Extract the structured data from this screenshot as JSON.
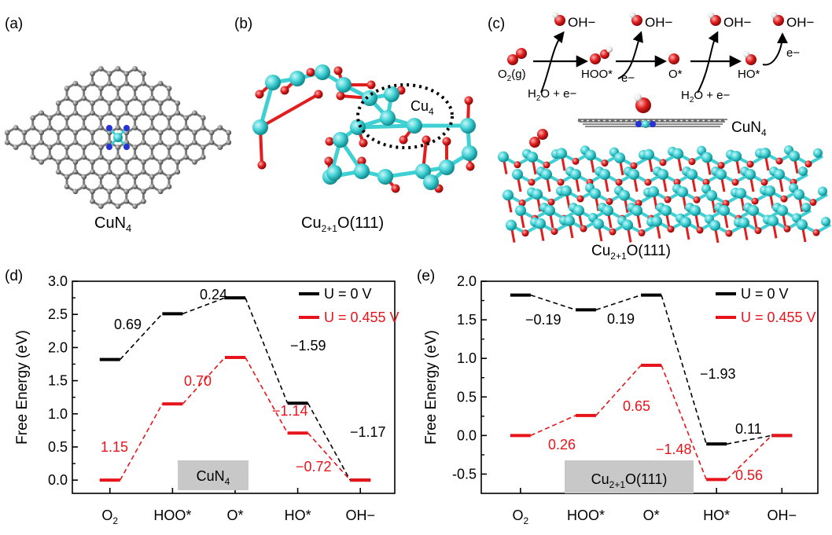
{
  "panels": {
    "a": {
      "label": "(a)",
      "caption_main": "CuN",
      "caption_sub": "4"
    },
    "b": {
      "label": "(b)",
      "caption_main": "Cu",
      "caption_sub": "2+1",
      "caption_rest": "O(111)",
      "site_main": "Cu",
      "site_sub": "4"
    },
    "c": {
      "label": "(c)",
      "oh_labels": [
        "OH−",
        "OH−",
        "OH−",
        "OH−"
      ],
      "species": [
        {
          "main": "O",
          "sub": "2",
          "rest": "(g)"
        },
        {
          "main": "HOO*",
          "sub": "",
          "rest": ""
        },
        {
          "main": "O*",
          "sub": "",
          "rest": ""
        },
        {
          "main": "HO*",
          "sub": "",
          "rest": ""
        }
      ],
      "reactants": [
        {
          "main": "H",
          "sub": "2",
          "rest": "O + e−"
        },
        {
          "main": "H",
          "sub": "2",
          "rest": "O + e−"
        }
      ],
      "electrons": [
        "e−",
        "e−"
      ],
      "layer_label": {
        "main": "CuN",
        "sub": "4"
      },
      "substrate_label": {
        "main": "Cu",
        "sub": "2+1",
        "rest": "O(111)"
      }
    }
  },
  "colors": {
    "u0": "#000000",
    "u455": "#e8141b",
    "cu": "#3fd0d4",
    "o": "#e01e1e",
    "n": "#2532d6",
    "c": "#808080",
    "box": "#c8c8c8"
  },
  "chart_data": [
    {
      "panel_label": "(d)",
      "type": "line",
      "ylabel": "Free Energy (eV)",
      "ylim": [
        -0.2,
        3.0
      ],
      "yticks": [
        0.0,
        0.5,
        1.0,
        1.5,
        2.0,
        2.5,
        3.0
      ],
      "ytick_labels": [
        "0.0",
        "0.5",
        "1.0",
        "1.5",
        "2.0",
        "2.5",
        "3.0"
      ],
      "categories": [
        "O2",
        "HOO*",
        "O*",
        "HO*",
        "OH−"
      ],
      "category_labels": [
        {
          "main": "O",
          "sub": "2"
        },
        {
          "main": "HOO*",
          "sub": ""
        },
        {
          "main": "O*",
          "sub": ""
        },
        {
          "main": "HO*",
          "sub": ""
        },
        {
          "main": "OH−",
          "sub": ""
        }
      ],
      "box_label": {
        "main": "CuN",
        "sub": "4",
        "rest": ""
      },
      "series": [
        {
          "name": "U = 0 V",
          "color": "#000000",
          "values": [
            1.82,
            2.51,
            2.75,
            1.16,
            0.0
          ],
          "step_labels": [
            "0.69",
            "0.24",
            "−1.59",
            "−1.17"
          ]
        },
        {
          "name": "U = 0.455 V",
          "color": "#e8141b",
          "values": [
            0.0,
            1.15,
            1.85,
            0.71,
            0.0
          ],
          "step_labels": [
            "1.15",
            "0.70",
            "−1.14",
            "−0.72"
          ]
        }
      ]
    },
    {
      "panel_label": "(e)",
      "type": "line",
      "ylabel": "Free Energy (eV)",
      "ylim": [
        -0.75,
        2.0
      ],
      "yticks": [
        -0.5,
        0.0,
        0.5,
        1.0,
        1.5,
        2.0
      ],
      "ytick_labels": [
        "-0.5",
        "0.0",
        "0.5",
        "1.0",
        "1.5",
        "2.0"
      ],
      "categories": [
        "O2",
        "HOO*",
        "O*",
        "HO*",
        "OH−"
      ],
      "category_labels": [
        {
          "main": "O",
          "sub": "2"
        },
        {
          "main": "HOO*",
          "sub": ""
        },
        {
          "main": "O*",
          "sub": ""
        },
        {
          "main": "HO*",
          "sub": ""
        },
        {
          "main": "OH−",
          "sub": ""
        }
      ],
      "box_label": {
        "main": "Cu",
        "sub": "2+1",
        "rest": "O(111)"
      },
      "series": [
        {
          "name": "U = 0 V",
          "color": "#000000",
          "values": [
            1.82,
            1.63,
            1.82,
            -0.11,
            0.0
          ],
          "step_labels": [
            "−0.19",
            "0.19",
            "−1.93",
            "0.11"
          ]
        },
        {
          "name": "U = 0.455 V",
          "color": "#e8141b",
          "values": [
            0.0,
            0.26,
            0.91,
            -0.57,
            0.0
          ],
          "step_labels": [
            "0.26",
            "0.65",
            "−1.48",
            "0.56"
          ]
        }
      ]
    }
  ]
}
